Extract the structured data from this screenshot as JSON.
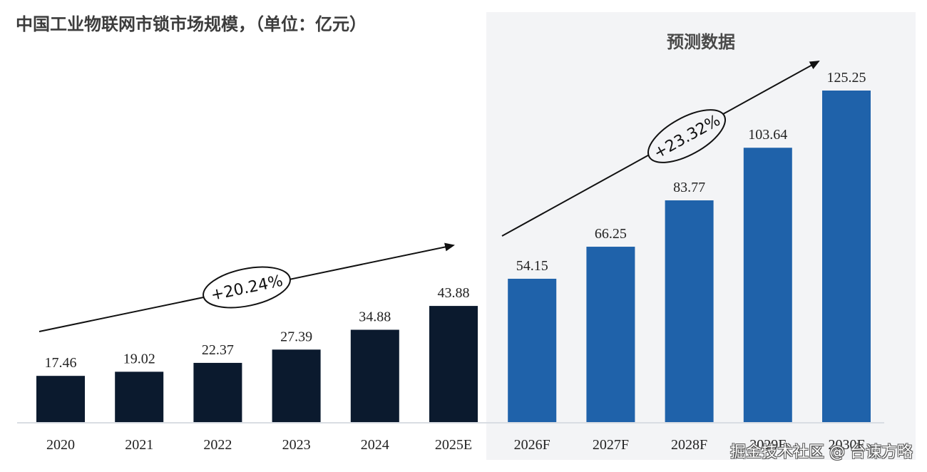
{
  "chart_data": {
    "type": "bar",
    "title": "中国工业物联网市锁市场规模，（单位：亿元）",
    "unit": "亿元",
    "xlabel": "",
    "ylabel": "",
    "categories": [
      "2020",
      "2021",
      "2022",
      "2023",
      "2024",
      "2025E",
      "2026F",
      "2027F",
      "2028F",
      "2029F",
      "2030F"
    ],
    "values": [
      17.46,
      19.02,
      22.37,
      27.39,
      34.88,
      43.88,
      54.15,
      66.25,
      83.77,
      103.64,
      125.25
    ],
    "value_labels": [
      "17.46",
      "19.02",
      "22.37",
      "27.39",
      "34.88",
      "43.88",
      "54.15",
      "66.25",
      "83.77",
      "103.64",
      "125.25"
    ],
    "series_type": [
      "actual",
      "actual",
      "actual",
      "actual",
      "actual",
      "actual",
      "forecast",
      "forecast",
      "forecast",
      "forecast",
      "forecast"
    ],
    "colors": {
      "actual": "#0b1a2e",
      "forecast": "#1f62aa"
    },
    "ylim": [
      0,
      130
    ],
    "grid": false,
    "forecast_region": {
      "label": "预测数据",
      "from_category": "2026F",
      "to_category": "2030F"
    },
    "annotations": [
      {
        "type": "cagr-arrow",
        "text": "+20.24%",
        "from": "2020",
        "to": "2025E"
      },
      {
        "type": "cagr-arrow",
        "text": "+23.32%",
        "from": "2026F",
        "to": "2030F"
      }
    ]
  },
  "watermark": "掘金技术社区 @ 台谏方略"
}
